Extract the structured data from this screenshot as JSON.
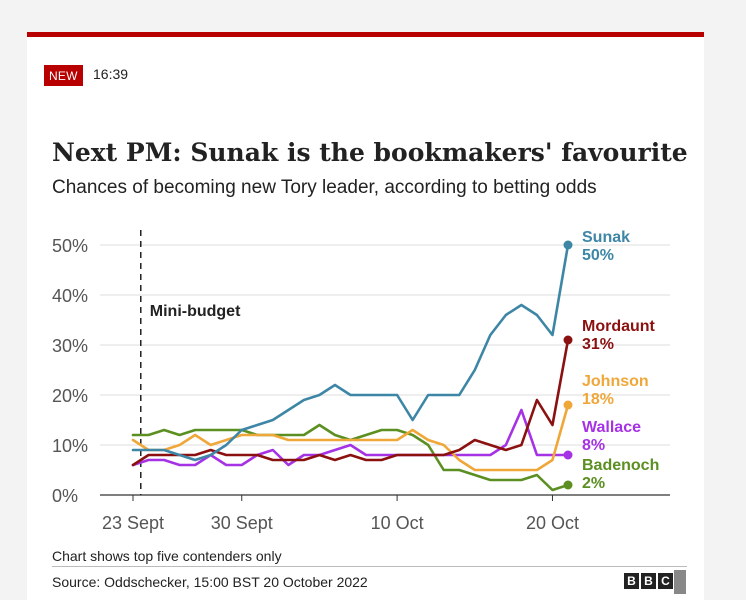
{
  "header": {
    "badge": "NEW",
    "time": "16:39"
  },
  "chart_data": {
    "type": "line",
    "title": "Next PM: Sunak is the bookmakers' favourite",
    "subtitle": "Chances of becoming new Tory leader, according to betting odds",
    "ylim": [
      0,
      50
    ],
    "yticks": [
      "0%",
      "10%",
      "20%",
      "30%",
      "40%",
      "50%"
    ],
    "xlim": [
      0,
      30
    ],
    "xticks": [
      {
        "x": 0,
        "label": "23 Sept"
      },
      {
        "x": 7,
        "label": "30 Sept"
      },
      {
        "x": 17,
        "label": "10 Oct"
      },
      {
        "x": 27,
        "label": "20 Oct"
      }
    ],
    "annotation": {
      "label": "Mini-budget",
      "x": 0.5
    },
    "grid": true,
    "series": [
      {
        "name": "Badenoch",
        "end_label": "2%",
        "color": "#5b8f22",
        "values": [
          12,
          12,
          13,
          12,
          13,
          13,
          13,
          13,
          12,
          12,
          12,
          12,
          14,
          12,
          11,
          12,
          13,
          13,
          12,
          10,
          5,
          5,
          4,
          3,
          3,
          3,
          4,
          1,
          2
        ]
      },
      {
        "name": "Wallace",
        "end_label": "8%",
        "color": "#a632e5",
        "values": [
          6,
          7,
          7,
          6,
          6,
          8,
          6,
          6,
          8,
          9,
          6,
          8,
          8,
          9,
          10,
          8,
          8,
          8,
          8,
          8,
          8,
          8,
          8,
          8,
          10,
          17,
          8,
          8,
          8
        ]
      },
      {
        "name": "Johnson",
        "end_label": "18%",
        "color": "#f0a73a",
        "values": [
          11,
          9,
          9,
          10,
          12,
          10,
          11,
          12,
          12,
          12,
          11,
          11,
          11,
          11,
          11,
          11,
          11,
          11,
          13,
          11,
          10,
          7,
          5,
          5,
          5,
          5,
          5,
          7,
          18
        ]
      },
      {
        "name": "Mordaunt",
        "end_label": "31%",
        "color": "#8b1111",
        "values": [
          6,
          8,
          8,
          8,
          8,
          9,
          8,
          8,
          8,
          7,
          7,
          7,
          8,
          7,
          8,
          7,
          7,
          8,
          8,
          8,
          8,
          9,
          11,
          10,
          9,
          10,
          19,
          14,
          31
        ]
      },
      {
        "name": "Sunak",
        "end_label": "50%",
        "color": "#3e86a6",
        "values": [
          9,
          9,
          9,
          8,
          7,
          8,
          10,
          13,
          14,
          15,
          17,
          19,
          20,
          22,
          20,
          20,
          20,
          20,
          15,
          20,
          20,
          20,
          25,
          32,
          36,
          38,
          36,
          32,
          50
        ]
      }
    ]
  },
  "footer": {
    "note": "Chart shows top five contenders only",
    "source": "Source: Oddschecker, 15:00 BST 20 October 2022",
    "logo_letters": [
      "B",
      "B",
      "C"
    ]
  }
}
